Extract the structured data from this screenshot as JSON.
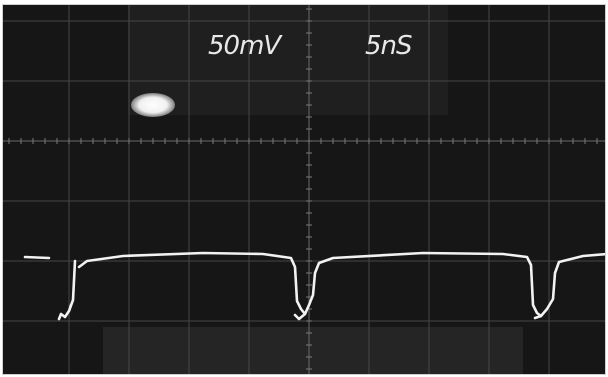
{
  "scope": {
    "volts_per_div": "50mV",
    "time_per_div": "5nS"
  },
  "colors": {
    "screen": "#161616",
    "grid": "#5a5a5a",
    "trace": "#f2f2f2"
  },
  "icons": {
    "spot": "bright-dot"
  }
}
